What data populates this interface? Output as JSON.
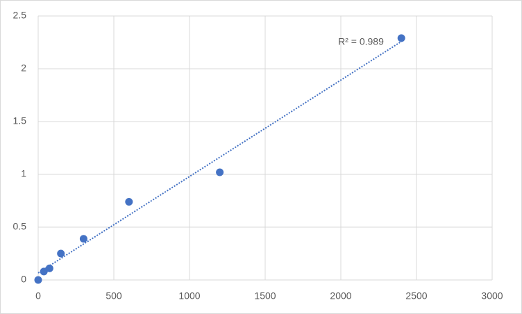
{
  "chart_data": {
    "type": "scatter",
    "x": [
      0,
      37.5,
      75,
      150,
      300,
      600,
      1200,
      2400
    ],
    "values": [
      0,
      0.08,
      0.11,
      0.25,
      0.39,
      0.74,
      1.02,
      2.29
    ],
    "color": "#4472c4",
    "xlim": [
      0,
      3000
    ],
    "xticks": [
      0,
      500,
      1000,
      1500,
      2000,
      2500,
      3000
    ],
    "ylim": [
      0,
      2.5
    ],
    "yticks": [
      0,
      0.5,
      1,
      1.5,
      2,
      2.5
    ],
    "grid": true,
    "trendline": "linear",
    "annotations": [
      "R² = 0.989"
    ]
  }
}
